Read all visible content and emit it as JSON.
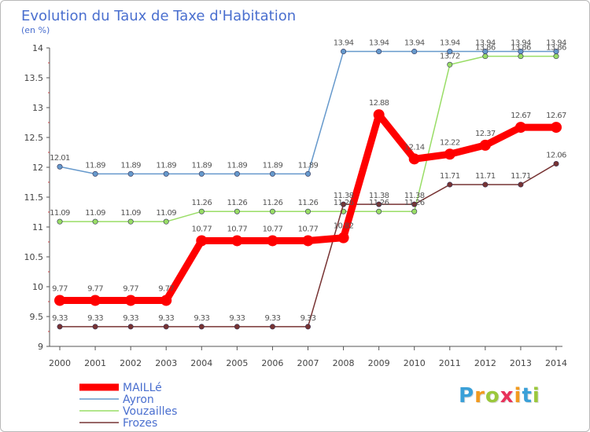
{
  "chart_data": {
    "type": "line",
    "title": "Evolution du Taux de Taxe d'Habitation",
    "subtitle": "(en %)",
    "xlabel": "",
    "ylabel": "",
    "x": [
      "2000",
      "2001",
      "2002",
      "2003",
      "2004",
      "2005",
      "2006",
      "2007",
      "2008",
      "2009",
      "2010",
      "2011",
      "2012",
      "2013",
      "2014"
    ],
    "ylim": [
      9,
      14
    ],
    "yticks": [
      9,
      9.5,
      10,
      10.5,
      11,
      11.5,
      12,
      12.5,
      13,
      13.5,
      14
    ],
    "ytick_labels": [
      "9",
      "9.5",
      "10",
      "10.5",
      "11",
      "11.5",
      "12",
      "12.5",
      "13",
      "13.5",
      "14"
    ],
    "grid": false,
    "legend_position": "bottom-left",
    "series": [
      {
        "name": "MAILLé",
        "color": "#ff0000",
        "values": [
          9.77,
          9.77,
          9.77,
          9.77,
          10.77,
          10.77,
          10.77,
          10.77,
          10.82,
          12.88,
          12.14,
          12.22,
          12.37,
          12.67,
          12.67
        ],
        "labels": [
          "9.77",
          "9.77",
          "9.77",
          "9.77",
          "10.77",
          "10.77",
          "10.77",
          "10.77",
          "10.82",
          "12.88",
          "12.14",
          "12.22",
          "12.37",
          "12.67",
          "12.67"
        ]
      },
      {
        "name": "Ayron",
        "color": "#6699cc",
        "values": [
          12.01,
          11.89,
          11.89,
          11.89,
          11.89,
          11.89,
          11.89,
          11.89,
          13.94,
          13.94,
          13.94,
          13.94,
          13.94,
          13.94,
          13.94
        ],
        "labels": [
          "12.01",
          "11.89",
          "11.89",
          "11.89",
          "11.89",
          "11.89",
          "11.89",
          "11.89",
          "13.94",
          "13.94",
          "13.94",
          "13.94",
          "13.94",
          "13.94",
          "13.94"
        ]
      },
      {
        "name": "Vouzailles",
        "color": "#99dd66",
        "values": [
          11.09,
          11.09,
          11.09,
          11.09,
          11.26,
          11.26,
          11.26,
          11.26,
          11.26,
          11.26,
          11.26,
          13.72,
          13.86,
          13.86,
          13.86
        ],
        "labels": [
          "11.09",
          "11.09",
          "11.09",
          "11.09",
          "11.26",
          "11.26",
          "11.26",
          "11.26",
          "11.26",
          "11.26",
          "11.26",
          "13.72",
          "13.86",
          "13.86",
          "13.86"
        ]
      },
      {
        "name": "Frozes",
        "color": "#773333",
        "values": [
          9.33,
          9.33,
          9.33,
          9.33,
          9.33,
          9.33,
          9.33,
          9.33,
          11.38,
          11.38,
          11.38,
          11.71,
          11.71,
          11.71,
          12.06
        ],
        "labels": [
          "9.33",
          "9.33",
          "9.33",
          "9.33",
          "9.33",
          "9.33",
          "9.33",
          "9.33",
          "11.38",
          "11.38",
          "11.38",
          "11.71",
          "11.71",
          "11.71",
          "12.06"
        ]
      }
    ]
  },
  "logo": {
    "letters": [
      "P",
      "r",
      "o",
      "x",
      "i",
      "t",
      "i"
    ],
    "colors": [
      "#3aa0d8",
      "#f29a1e",
      "#9bc83c",
      "#e8325a",
      "#f29a1e",
      "#3aa0d8",
      "#9bc83c"
    ]
  }
}
